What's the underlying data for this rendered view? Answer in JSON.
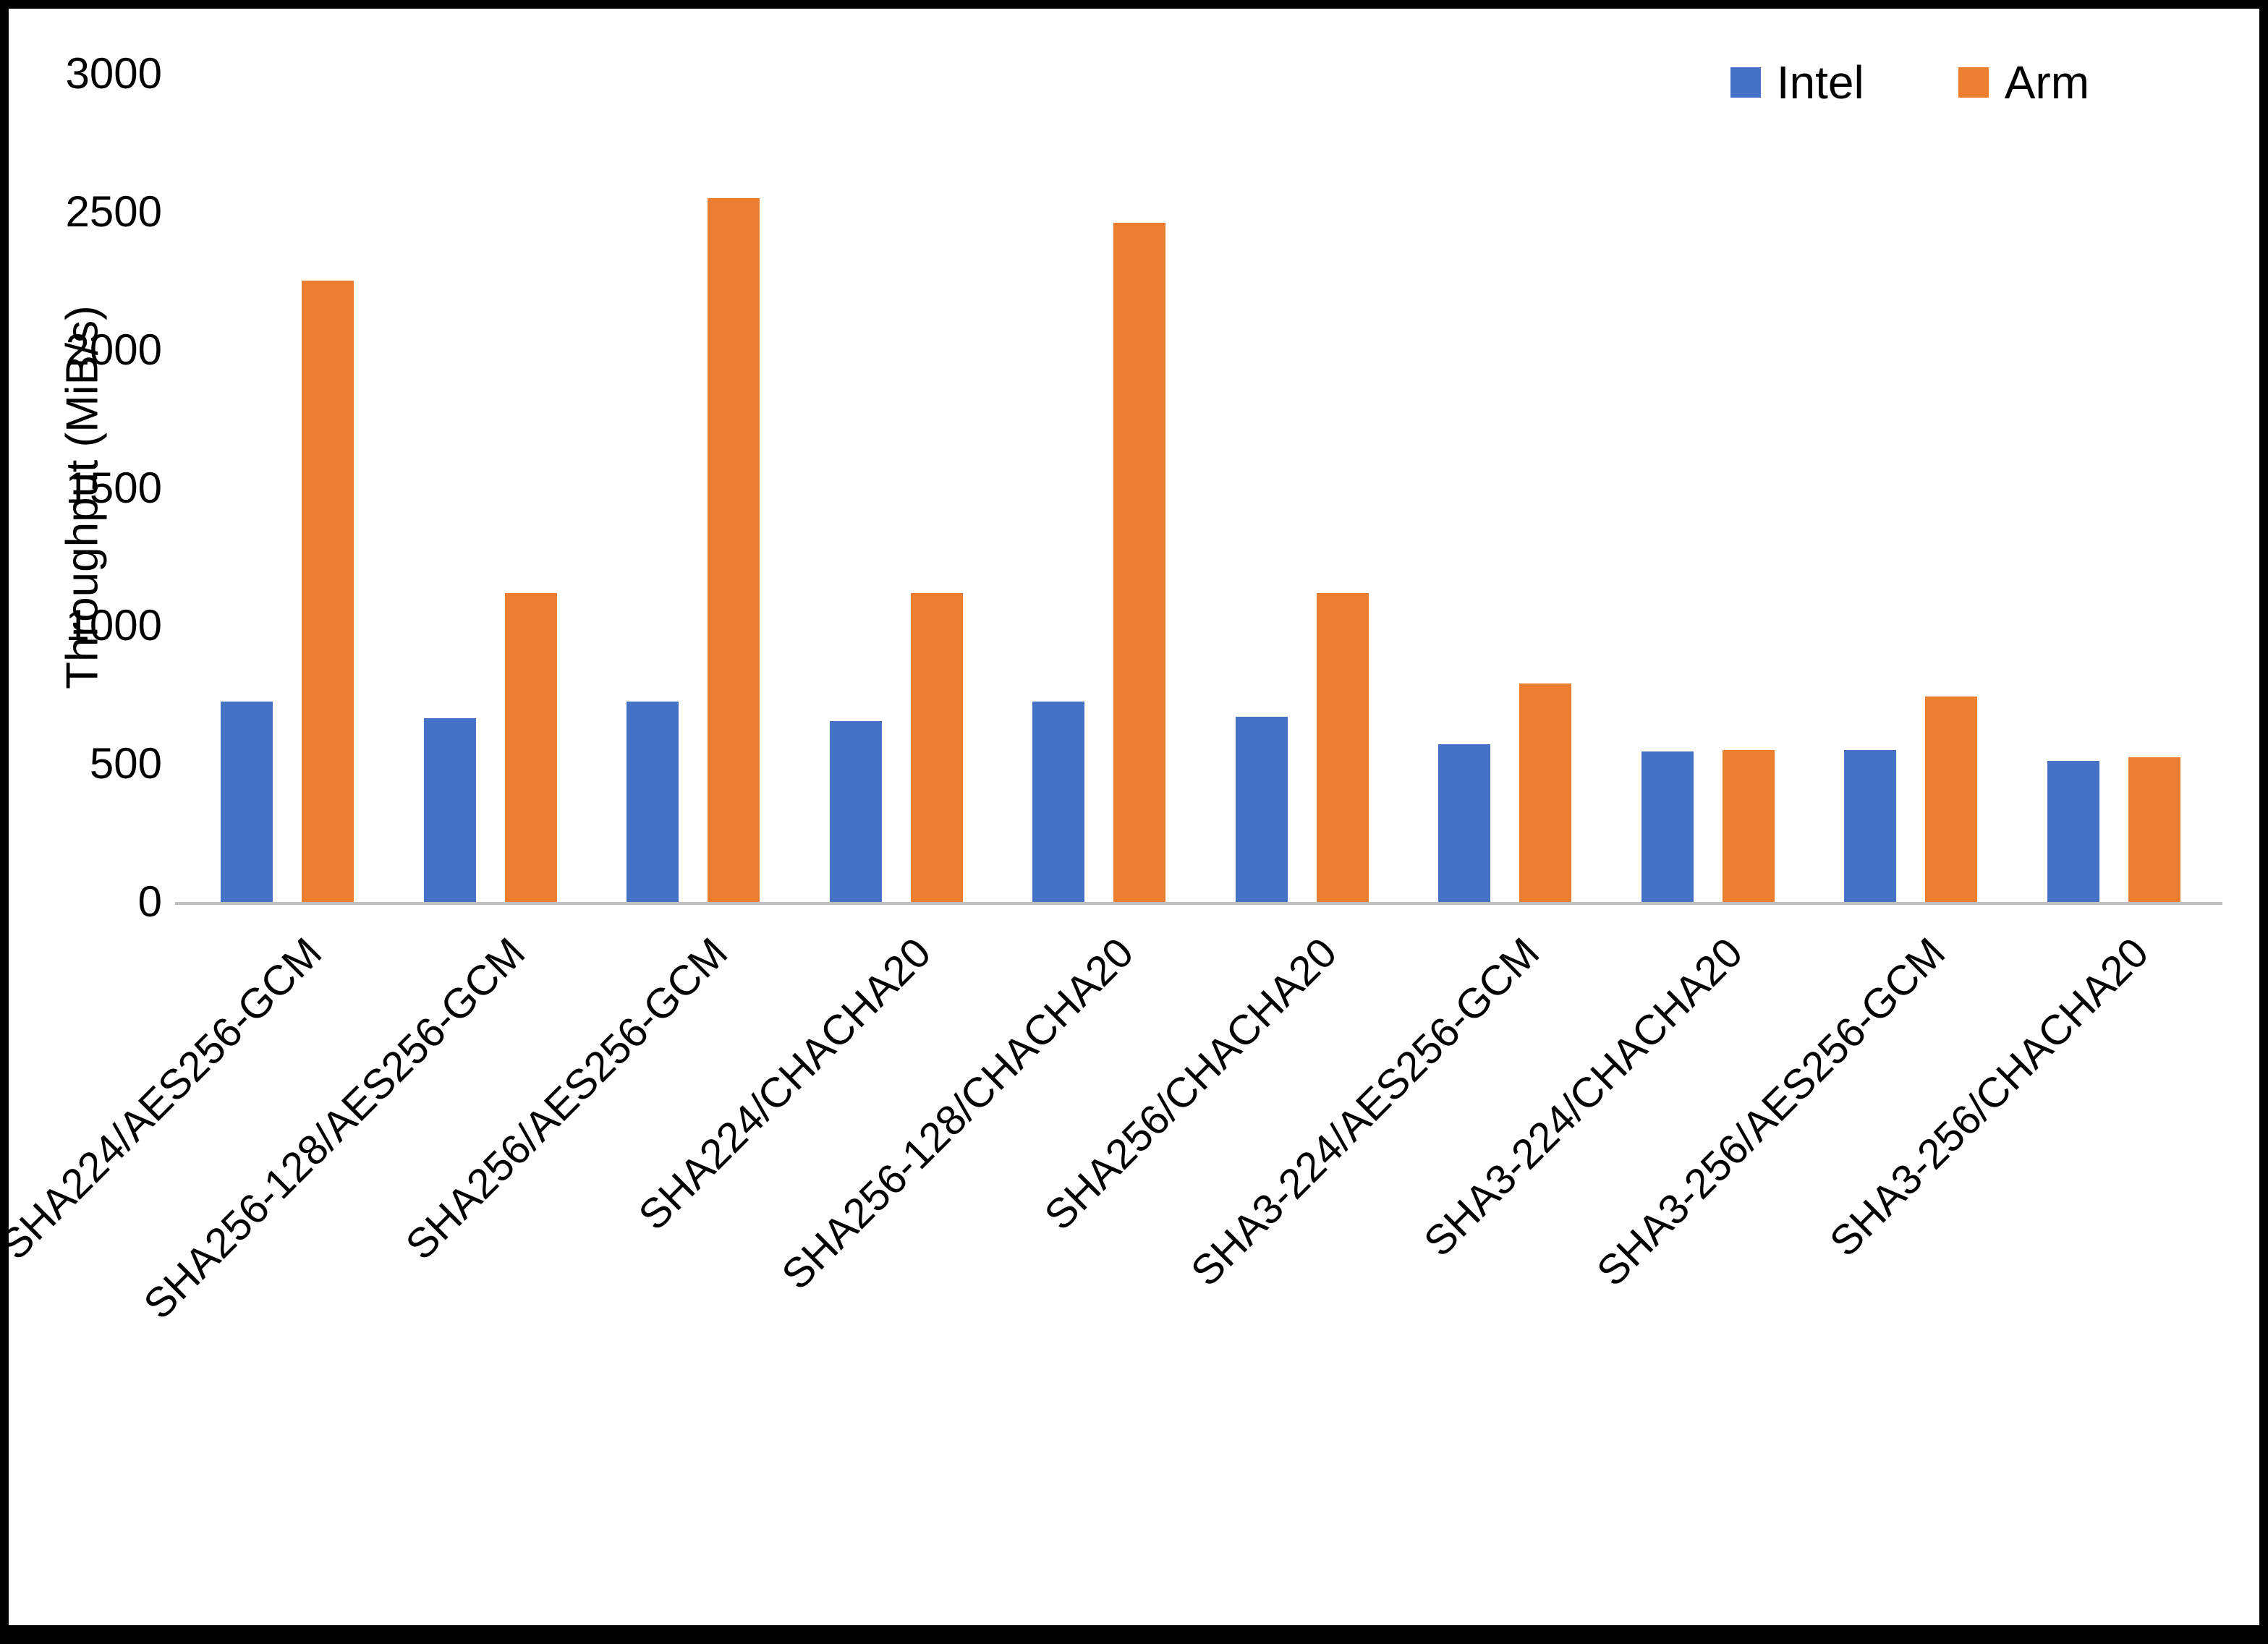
{
  "figure": {
    "background_color": "#ffffff",
    "border_color": "#000000"
  },
  "chart_data": {
    "type": "bar",
    "title": "",
    "xlabel": "",
    "ylabel": "Throughput (MiB/s)",
    "ylim": [
      0,
      3000
    ],
    "yticks": [
      0,
      500,
      1000,
      1500,
      2000,
      2500,
      3000
    ],
    "grid": false,
    "legend_position": "top-right",
    "categories": [
      "SHA224/AES256-GCM",
      "SHA256-128/AES256-GCM",
      "SHA256/AES256-GCM",
      "SHA224/CHACHA20",
      "SHA256-128/CHACHA20",
      "SHA256/CHACHA20",
      "SHA3-224/AES256-GCM",
      "SHA3-224/CHACHA20",
      "SHA3-256/AES256-GCM",
      "SHA3-256/CHACHA20"
    ],
    "series": [
      {
        "name": "Intel",
        "color": "#4472C4",
        "values": [
          725,
          665,
          725,
          655,
          725,
          670,
          570,
          545,
          550,
          510
        ]
      },
      {
        "name": "Arm",
        "color": "#ED7D31",
        "values": [
          2250,
          1120,
          2550,
          1120,
          2460,
          1120,
          790,
          550,
          745,
          525
        ]
      }
    ]
  }
}
